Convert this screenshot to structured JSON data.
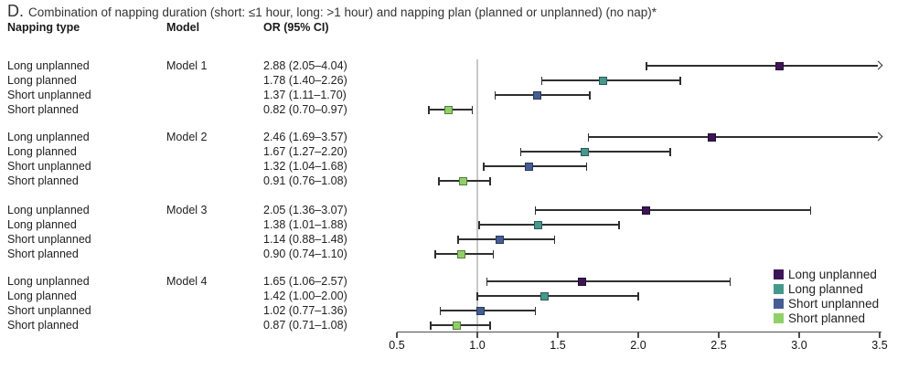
{
  "title": {
    "letter": "D.",
    "text": "Combination of napping duration (short: ≤1 hour, long: >1 hour) and napping plan (planned or unplanned) (no nap)*"
  },
  "table": {
    "headers": {
      "napping_type": "Napping type",
      "model": "Model",
      "or_ci": "OR (95% CI)"
    }
  },
  "colors": {
    "long_unplanned": "#3d1557",
    "long_planned": "#46988c",
    "short_unplanned": "#465d94",
    "short_planned": "#90d068",
    "ci_line": "#2f2f2f",
    "axis": "#4d4d4d",
    "reference_line": "#c9c9c9"
  },
  "chart_data": {
    "type": "forest",
    "title": "",
    "xlabel": "",
    "ylabel": "",
    "x_axis": {
      "min": 0.5,
      "max": 3.5,
      "ticks": [
        "0.5",
        "1.0",
        "1.5",
        "2.0",
        "2.5",
        "3.0",
        "3.5"
      ],
      "tick_values": [
        0.5,
        1.0,
        1.5,
        2.0,
        2.5,
        3.0,
        3.5
      ],
      "reference_line": 1.0,
      "grid": false
    },
    "legend": {
      "position": "bottom-right",
      "entries": [
        {
          "label": "Long unplanned",
          "color_key": "long_unplanned"
        },
        {
          "label": "Long planned",
          "color_key": "long_planned"
        },
        {
          "label": "Short unplanned",
          "color_key": "short_unplanned"
        },
        {
          "label": "Short planned",
          "color_key": "short_planned"
        }
      ]
    },
    "groups": [
      {
        "model": "Model 1",
        "rows": [
          {
            "label": "Long unplanned",
            "color_key": "long_unplanned",
            "or": 2.88,
            "ci_low": 2.05,
            "ci_high": 4.04,
            "or_text": "2.88 (2.05–4.04)"
          },
          {
            "label": "Long planned",
            "color_key": "long_planned",
            "or": 1.78,
            "ci_low": 1.4,
            "ci_high": 2.26,
            "or_text": "1.78 (1.40–2.26)"
          },
          {
            "label": "Short unplanned",
            "color_key": "short_unplanned",
            "or": 1.37,
            "ci_low": 1.11,
            "ci_high": 1.7,
            "or_text": "1.37 (1.11–1.70)"
          },
          {
            "label": "Short planned",
            "color_key": "short_planned",
            "or": 0.82,
            "ci_low": 0.7,
            "ci_high": 0.97,
            "or_text": "0.82 (0.70–0.97)"
          }
        ]
      },
      {
        "model": "Model 2",
        "rows": [
          {
            "label": "Long unplanned",
            "color_key": "long_unplanned",
            "or": 2.46,
            "ci_low": 1.69,
            "ci_high": 3.57,
            "or_text": "2.46 (1.69–3.57)"
          },
          {
            "label": "Long planned",
            "color_key": "long_planned",
            "or": 1.67,
            "ci_low": 1.27,
            "ci_high": 2.2,
            "or_text": "1.67 (1.27–2.20)"
          },
          {
            "label": "Short unplanned",
            "color_key": "short_unplanned",
            "or": 1.32,
            "ci_low": 1.04,
            "ci_high": 1.68,
            "or_text": "1.32 (1.04–1.68)"
          },
          {
            "label": "Short planned",
            "color_key": "short_planned",
            "or": 0.91,
            "ci_low": 0.76,
            "ci_high": 1.08,
            "or_text": "0.91 (0.76–1.08)"
          }
        ]
      },
      {
        "model": "Model 3",
        "rows": [
          {
            "label": "Long unplanned",
            "color_key": "long_unplanned",
            "or": 2.05,
            "ci_low": 1.36,
            "ci_high": 3.07,
            "or_text": "2.05 (1.36–3.07)"
          },
          {
            "label": "Long planned",
            "color_key": "long_planned",
            "or": 1.38,
            "ci_low": 1.01,
            "ci_high": 1.88,
            "or_text": "1.38 (1.01–1.88)"
          },
          {
            "label": "Short unplanned",
            "color_key": "short_unplanned",
            "or": 1.14,
            "ci_low": 0.88,
            "ci_high": 1.48,
            "or_text": "1.14 (0.88–1.48)"
          },
          {
            "label": "Short planned",
            "color_key": "short_planned",
            "or": 0.9,
            "ci_low": 0.74,
            "ci_high": 1.1,
            "or_text": "0.90 (0.74–1.10)"
          }
        ]
      },
      {
        "model": "Model 4",
        "rows": [
          {
            "label": "Long unplanned",
            "color_key": "long_unplanned",
            "or": 1.65,
            "ci_low": 1.06,
            "ci_high": 2.57,
            "or_text": "1.65 (1.06–2.57)"
          },
          {
            "label": "Long planned",
            "color_key": "long_planned",
            "or": 1.42,
            "ci_low": 1.0,
            "ci_high": 2.0,
            "or_text": "1.42 (1.00–2.00)"
          },
          {
            "label": "Short unplanned",
            "color_key": "short_unplanned",
            "or": 1.02,
            "ci_low": 0.77,
            "ci_high": 1.36,
            "or_text": "1.02 (0.77–1.36)"
          },
          {
            "label": "Short planned",
            "color_key": "short_planned",
            "or": 0.87,
            "ci_low": 0.71,
            "ci_high": 1.08,
            "or_text": "0.87 (0.71–1.08)"
          }
        ]
      }
    ]
  }
}
